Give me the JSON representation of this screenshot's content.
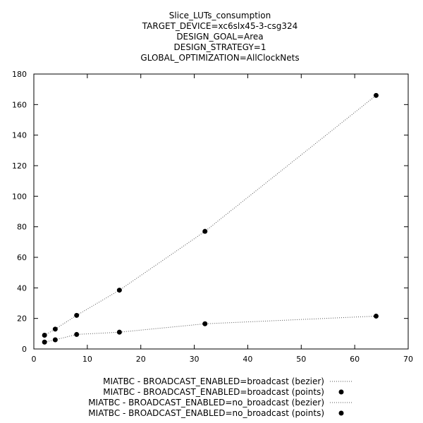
{
  "chart_data": {
    "type": "scatter",
    "title": [
      "Slice_LUTs_consumption",
      "TARGET_DEVICE=xc6slx45-3-csg324",
      "DESIGN_GOAL=Area",
      "DESIGN_STRATEGY=1",
      "GLOBAL_OPTIMIZATION=AllClockNets"
    ],
    "xlabel": "",
    "ylabel": "",
    "xlim": [
      0,
      70
    ],
    "ylim": [
      0,
      180
    ],
    "x_ticks": [
      0,
      10,
      20,
      30,
      40,
      50,
      60,
      70
    ],
    "y_ticks": [
      0,
      20,
      40,
      60,
      80,
      100,
      120,
      140,
      160,
      180
    ],
    "grid": false,
    "legend_position": "bottom-center",
    "series": [
      {
        "name": "MIATBC - BROADCAST_ENABLED=broadcast (bezier)",
        "style": "line-dotted",
        "x": [
          2,
          4,
          8,
          16,
          32,
          64
        ],
        "y": [
          9,
          13,
          22,
          38.5,
          77,
          166
        ]
      },
      {
        "name": "MIATBC - BROADCAST_ENABLED=broadcast (points)",
        "style": "points",
        "x": [
          2,
          4,
          8,
          16,
          32,
          64
        ],
        "y": [
          9,
          13,
          22,
          38.5,
          77,
          166
        ]
      },
      {
        "name": "MIATBC - BROADCAST_ENABLED=no_broadcast (bezier)",
        "style": "line-dotted",
        "x": [
          2,
          4,
          8,
          16,
          32,
          64
        ],
        "y": [
          4.5,
          6,
          9.5,
          11,
          16.5,
          21.5
        ]
      },
      {
        "name": "MIATBC - BROADCAST_ENABLED=no_broadcast (points)",
        "style": "points",
        "x": [
          2,
          4,
          8,
          16,
          32,
          64
        ],
        "y": [
          4.5,
          6,
          9.5,
          11,
          16.5,
          21.5
        ]
      }
    ]
  }
}
